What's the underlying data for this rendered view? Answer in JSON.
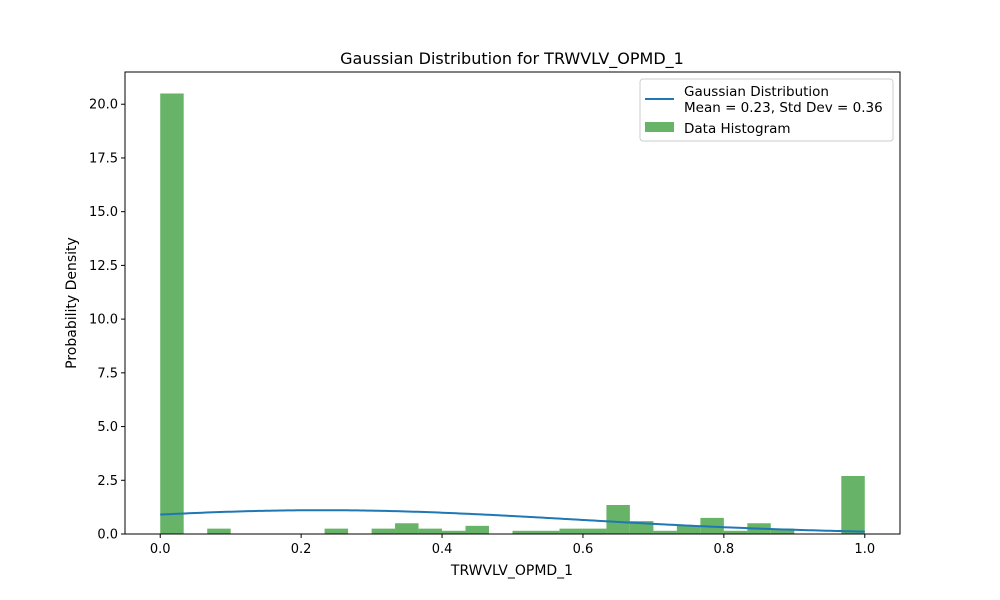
{
  "chart_data": {
    "type": "bar",
    "title": "Gaussian Distribution for TRWVLV_OPMD_1",
    "xlabel": "TRWVLV_OPMD_1",
    "ylabel": "Probability Density",
    "xlim": [
      -0.05,
      1.05
    ],
    "ylim": [
      0,
      21.5
    ],
    "xticks": [
      "0.0",
      "0.2",
      "0.4",
      "0.6",
      "0.8",
      "1.0"
    ],
    "yticks": [
      "0.0",
      "2.5",
      "5.0",
      "7.5",
      "10.0",
      "12.5",
      "15.0",
      "17.5",
      "20.0"
    ],
    "bin_width": 0.0333,
    "histogram": {
      "name": "Data Histogram",
      "color": "#4ca64c",
      "bins": [
        {
          "x": 0.0,
          "value": 20.5
        },
        {
          "x": 0.0667,
          "value": 0.25
        },
        {
          "x": 0.2333,
          "value": 0.25
        },
        {
          "x": 0.3,
          "value": 0.25
        },
        {
          "x": 0.3333,
          "value": 0.5
        },
        {
          "x": 0.3667,
          "value": 0.25
        },
        {
          "x": 0.4,
          "value": 0.15
        },
        {
          "x": 0.4333,
          "value": 0.38
        },
        {
          "x": 0.5,
          "value": 0.15
        },
        {
          "x": 0.5333,
          "value": 0.15
        },
        {
          "x": 0.5667,
          "value": 0.25
        },
        {
          "x": 0.6,
          "value": 0.25
        },
        {
          "x": 0.6333,
          "value": 1.35
        },
        {
          "x": 0.6667,
          "value": 0.6
        },
        {
          "x": 0.7,
          "value": 0.15
        },
        {
          "x": 0.7333,
          "value": 0.38
        },
        {
          "x": 0.7667,
          "value": 0.75
        },
        {
          "x": 0.8,
          "value": 0.15
        },
        {
          "x": 0.8333,
          "value": 0.5
        },
        {
          "x": 0.8667,
          "value": 0.25
        },
        {
          "x": 0.9667,
          "value": 2.7
        }
      ]
    },
    "gaussian": {
      "name": "Gaussian Distribution",
      "name_line2": "Mean = 0.23, Std Dev = 0.36",
      "mean": 0.23,
      "std": 0.36,
      "x_range": [
        0.0,
        1.0
      ],
      "color": "#1f77b4"
    },
    "legend_position": "top-right",
    "grid": false
  }
}
